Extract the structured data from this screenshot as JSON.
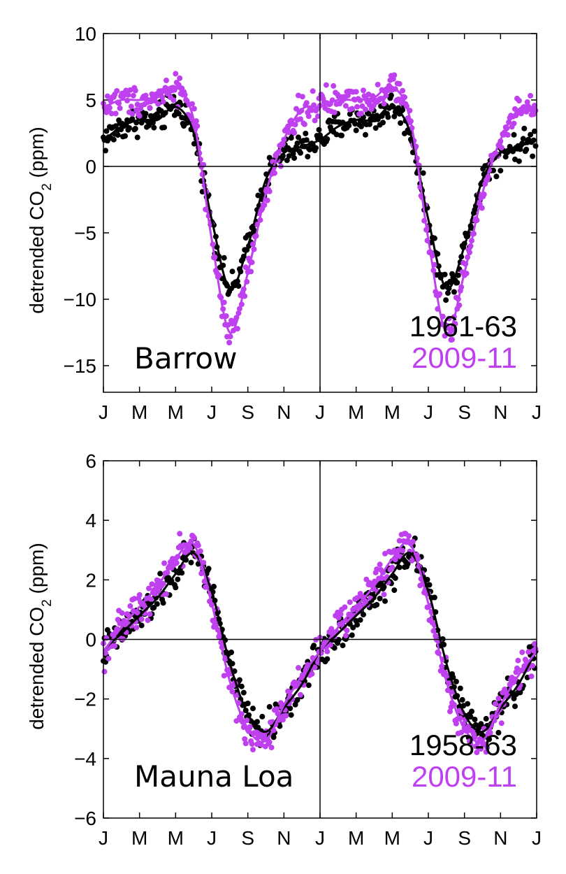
{
  "colors": {
    "old": "#000000",
    "new": "#bf40ef"
  },
  "chart_data": [
    {
      "type": "scatter",
      "site": "Barrow",
      "ylabel": "detrended CO",
      "ylabel_sub": "2",
      "ylabel_unit": " (ppm)",
      "ylim": [
        -17,
        10
      ],
      "yticks": [
        10,
        5,
        0,
        -5,
        -10,
        -15
      ],
      "ytick_labels": [
        "10",
        "5",
        "0",
        "−5",
        "−10",
        "−15"
      ],
      "xlim": [
        0,
        24
      ],
      "xticks": [
        0,
        2,
        4,
        6,
        8,
        10,
        12,
        14,
        16,
        18,
        20,
        22,
        24
      ],
      "xtick_labels": [
        "J",
        "M",
        "M",
        "J",
        "S",
        "N",
        "J",
        "M",
        "M",
        "J",
        "S",
        "N",
        "J"
      ],
      "xmax_shown": 24,
      "divider_x": 12,
      "legend": [
        "1961-63",
        "2009-11"
      ],
      "series": [
        {
          "name": "1961-63",
          "months": [
            0,
            1,
            2,
            3,
            4,
            5,
            6,
            7,
            8,
            9,
            10,
            11,
            12
          ],
          "values": [
            2.0,
            3.0,
            3.5,
            3.5,
            4.5,
            2.5,
            -4.0,
            -9.2,
            -6.0,
            -1.0,
            1.0,
            1.5,
            2.0
          ]
        },
        {
          "name": "2009-11",
          "months": [
            0,
            1,
            2,
            3,
            4,
            5,
            6,
            7,
            8,
            9,
            10,
            11,
            12
          ],
          "values": [
            4.5,
            5.0,
            5.0,
            5.2,
            6.0,
            3.5,
            -5.5,
            -12.5,
            -8.0,
            -2.0,
            2.0,
            4.3,
            4.5
          ]
        }
      ]
    },
    {
      "type": "scatter",
      "site": "Mauna Loa",
      "ylabel": "detrended CO",
      "ylabel_sub": "2",
      "ylabel_unit": " (ppm)",
      "ylim": [
        -6,
        6
      ],
      "yticks": [
        6,
        4,
        2,
        0,
        -2,
        -4,
        -6
      ],
      "ytick_labels": [
        "6",
        "4",
        "2",
        "0",
        "−2",
        "−4",
        "−6"
      ],
      "xlim": [
        0,
        24
      ],
      "xticks": [
        0,
        2,
        4,
        6,
        8,
        10,
        12,
        14,
        16,
        18,
        20,
        22,
        24
      ],
      "xtick_labels": [
        "J",
        "M",
        "M",
        "J",
        "S",
        "N",
        "J",
        "M",
        "M",
        "J",
        "S",
        "N",
        "J"
      ],
      "xmax_shown": 24,
      "divider_x": 12,
      "legend": [
        "1958-63",
        "2009-11"
      ],
      "series": [
        {
          "name": "1958-63",
          "months": [
            0,
            1,
            2,
            3,
            4,
            5,
            6,
            7,
            8,
            9,
            10,
            11,
            12
          ],
          "values": [
            -0.4,
            0.2,
            0.8,
            1.4,
            2.2,
            2.9,
            1.6,
            -0.8,
            -2.5,
            -3.1,
            -2.3,
            -1.5,
            -0.4
          ]
        },
        {
          "name": "2009-11",
          "months": [
            0,
            1,
            2,
            3,
            4,
            5,
            6,
            7,
            8,
            9,
            10,
            11,
            12
          ],
          "values": [
            -0.4,
            0.4,
            1.1,
            1.8,
            2.7,
            3.2,
            1.2,
            -1.4,
            -3.0,
            -3.4,
            -2.2,
            -1.2,
            -0.4
          ]
        }
      ]
    }
  ]
}
